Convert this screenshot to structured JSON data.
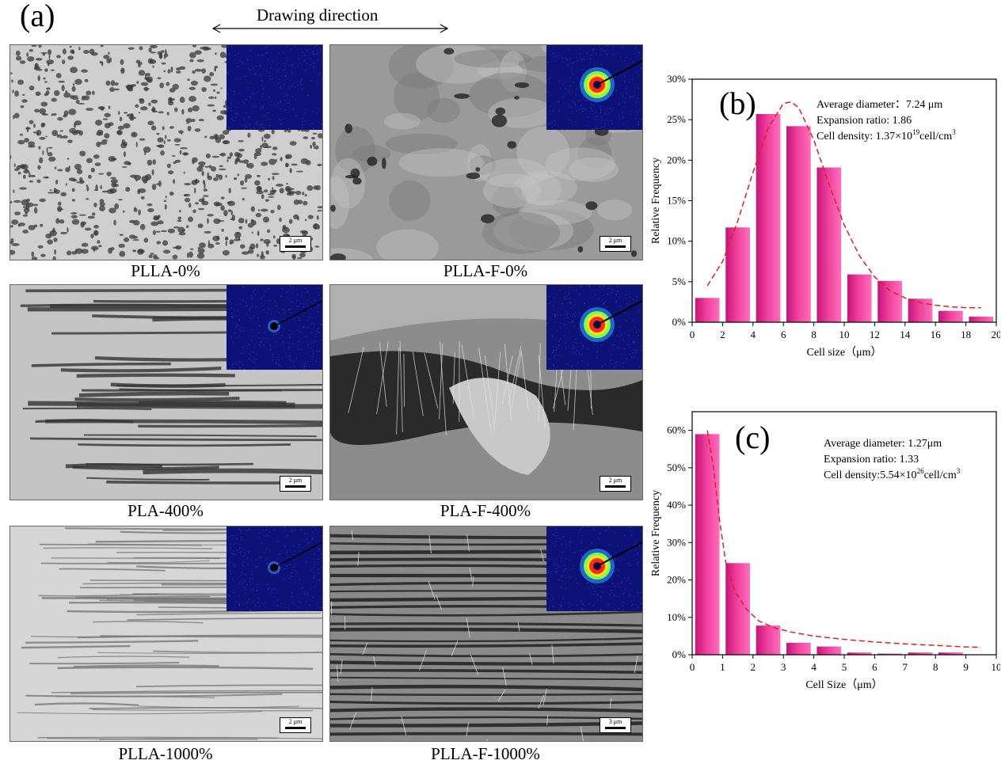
{
  "figure": {
    "panel_a_label": "(a)",
    "panel_b_label": "(b)",
    "panel_c_label": "(c)",
    "drawing_direction": "Drawing direction",
    "images": [
      {
        "caption": "PLLA-0%",
        "scale_text": "2 μm",
        "texture": "porous",
        "inset": "blank"
      },
      {
        "caption": "PLLA-F-0%",
        "scale_text": "2 μm",
        "texture": "smooth",
        "inset": "ring"
      },
      {
        "caption": "PLA-400%",
        "scale_text": "2 μm",
        "texture": "striated",
        "inset": "dot"
      },
      {
        "caption": "PLA-F-400%",
        "scale_text": "2 μm",
        "texture": "fibrous",
        "inset": "ring"
      },
      {
        "caption": "PLLA-1000%",
        "scale_text": "2 μm",
        "texture": "fine-striated",
        "inset": "dot"
      },
      {
        "caption": "PLLA-F-1000%",
        "scale_text": "3 μm",
        "texture": "layered",
        "inset": "ring"
      }
    ]
  },
  "chart_data": [
    {
      "type": "bar",
      "panel": "(b)",
      "xlabel": "Cell size（μm）",
      "ylabel": "Relative Frequency",
      "xlim": [
        0,
        20
      ],
      "ylim": [
        0,
        30
      ],
      "xticks": [
        0,
        2,
        4,
        6,
        8,
        10,
        12,
        14,
        16,
        18,
        20
      ],
      "yticks": [
        0,
        5,
        10,
        15,
        20,
        25,
        30
      ],
      "ytick_labels": [
        "0%",
        "5%",
        "10%",
        "15%",
        "20%",
        "25%",
        "30%"
      ],
      "bin_width": 1.6,
      "x": [
        1,
        3,
        5,
        7,
        9,
        11,
        13,
        15,
        17,
        19
      ],
      "values": [
        3,
        11.7,
        25.7,
        24.2,
        19.1,
        5.9,
        5.1,
        2.9,
        1.4,
        0.7
      ],
      "fit_curve": {
        "x": [
          1,
          2,
          3,
          4,
          5,
          6,
          6.5,
          7,
          8,
          9,
          10,
          11,
          12,
          13,
          14,
          15,
          16,
          17,
          18,
          19
        ],
        "y": [
          4.5,
          7.5,
          12.5,
          18.5,
          24,
          27,
          27.2,
          26.5,
          22.5,
          17,
          12,
          8.2,
          5.6,
          3.9,
          3,
          2.4,
          2.1,
          1.9,
          1.8,
          1.8
        ]
      },
      "annotations": [
        "Average diameter：7.24 μm",
        "Expansion ratio: 1.86",
        "Cell density: 1.37×10",
        "19",
        "cell/cm",
        "3"
      ],
      "colors": {
        "bar": "#ee3f9b",
        "curve": "#e02020"
      }
    },
    {
      "type": "bar",
      "panel": "(c)",
      "xlabel": "Cell Size（μm）",
      "ylabel": "Relative Frequency",
      "xlim": [
        0,
        10
      ],
      "ylim": [
        0,
        65
      ],
      "xticks": [
        0,
        1,
        2,
        3,
        4,
        5,
        6,
        7,
        8,
        9,
        10
      ],
      "yticks": [
        0,
        10,
        20,
        30,
        40,
        50,
        60
      ],
      "ytick_labels": [
        "0%",
        "10%",
        "20%",
        "30%",
        "40%",
        "50%",
        "60%"
      ],
      "bin_width": 0.8,
      "x": [
        0.5,
        1.5,
        2.5,
        3.5,
        4.5,
        5.5,
        6.5,
        7.5,
        8.5
      ],
      "values": [
        59,
        24.5,
        7.8,
        3.2,
        2.2,
        0.6,
        0.3,
        0.6,
        0.6
      ],
      "fit_curve": {
        "x": [
          0.5,
          0.7,
          0.9,
          1.1,
          1.4,
          1.8,
          2.2,
          2.7,
          3.3,
          4,
          5,
          6,
          7,
          8,
          9,
          9.5
        ],
        "y": [
          60,
          50,
          36,
          25,
          17,
          12,
          9,
          7.2,
          6,
          5,
          4.1,
          3.4,
          2.9,
          2.5,
          2.1,
          2
        ]
      },
      "annotations": [
        "Average diameter: 1.27μm",
        "Expansion ratio: 1.33",
        "Cell density:5.54×10",
        "26",
        "cell/cm",
        "3"
      ],
      "colors": {
        "bar": "#ee3f9b",
        "curve": "#e02020"
      }
    }
  ]
}
